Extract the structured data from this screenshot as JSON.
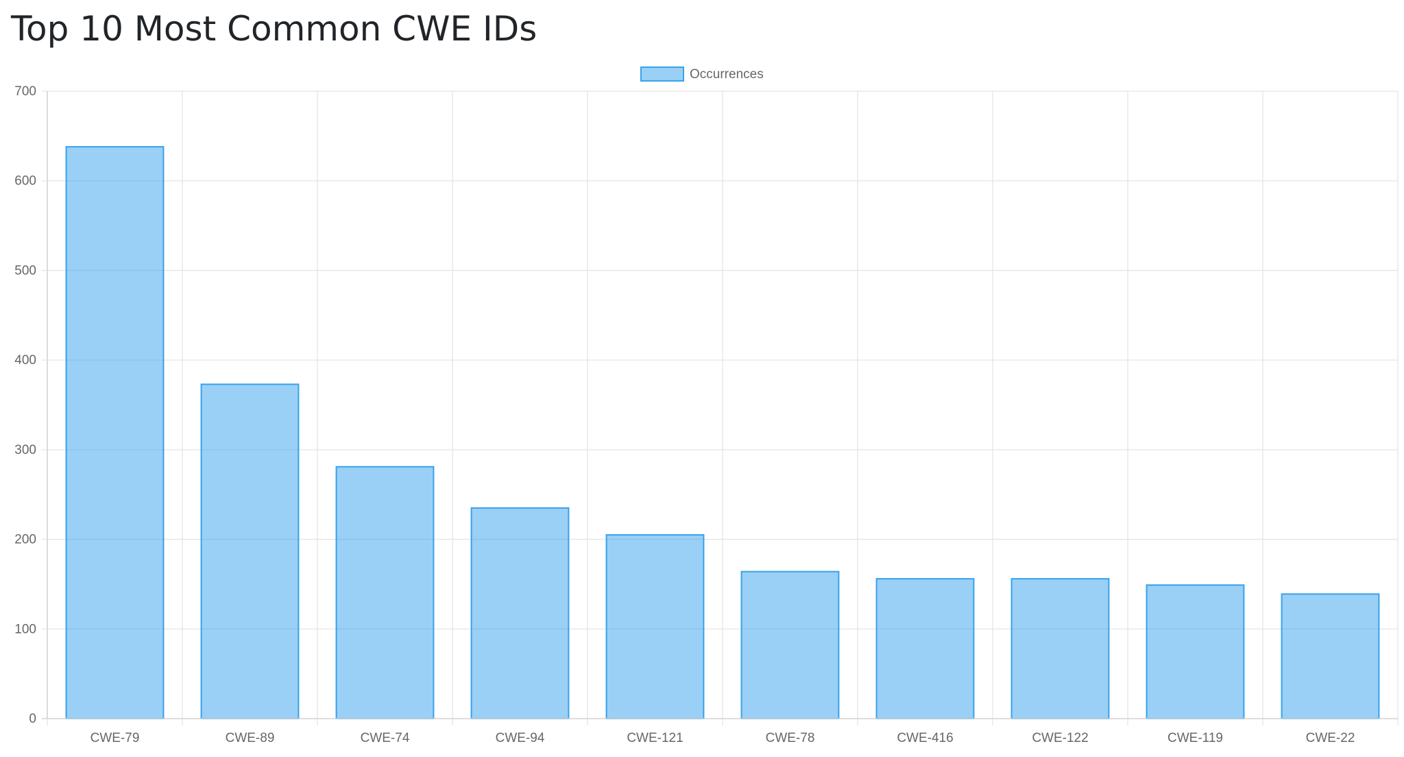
{
  "page": {
    "title": "Top 10 Most Common CWE IDs"
  },
  "chart_data": {
    "type": "bar",
    "title": "",
    "xlabel": "",
    "ylabel": "",
    "categories": [
      "CWE-79",
      "CWE-89",
      "CWE-74",
      "CWE-94",
      "CWE-121",
      "CWE-78",
      "CWE-416",
      "CWE-122",
      "CWE-119",
      "CWE-22"
    ],
    "series": [
      {
        "name": "Occurrences",
        "values": [
          638,
          373,
          281,
          235,
          205,
          164,
          156,
          156,
          149,
          139
        ]
      }
    ],
    "ylim": [
      0,
      700
    ],
    "yticks": [
      0,
      100,
      200,
      300,
      400,
      500,
      600,
      700
    ],
    "grid": true,
    "legend": "top-center",
    "colors": {
      "bar_fill": "rgba(54,162,235,0.5)",
      "bar_stroke": "#36a2eb",
      "grid": "#e5e5e5",
      "axis_text": "#666666"
    }
  }
}
